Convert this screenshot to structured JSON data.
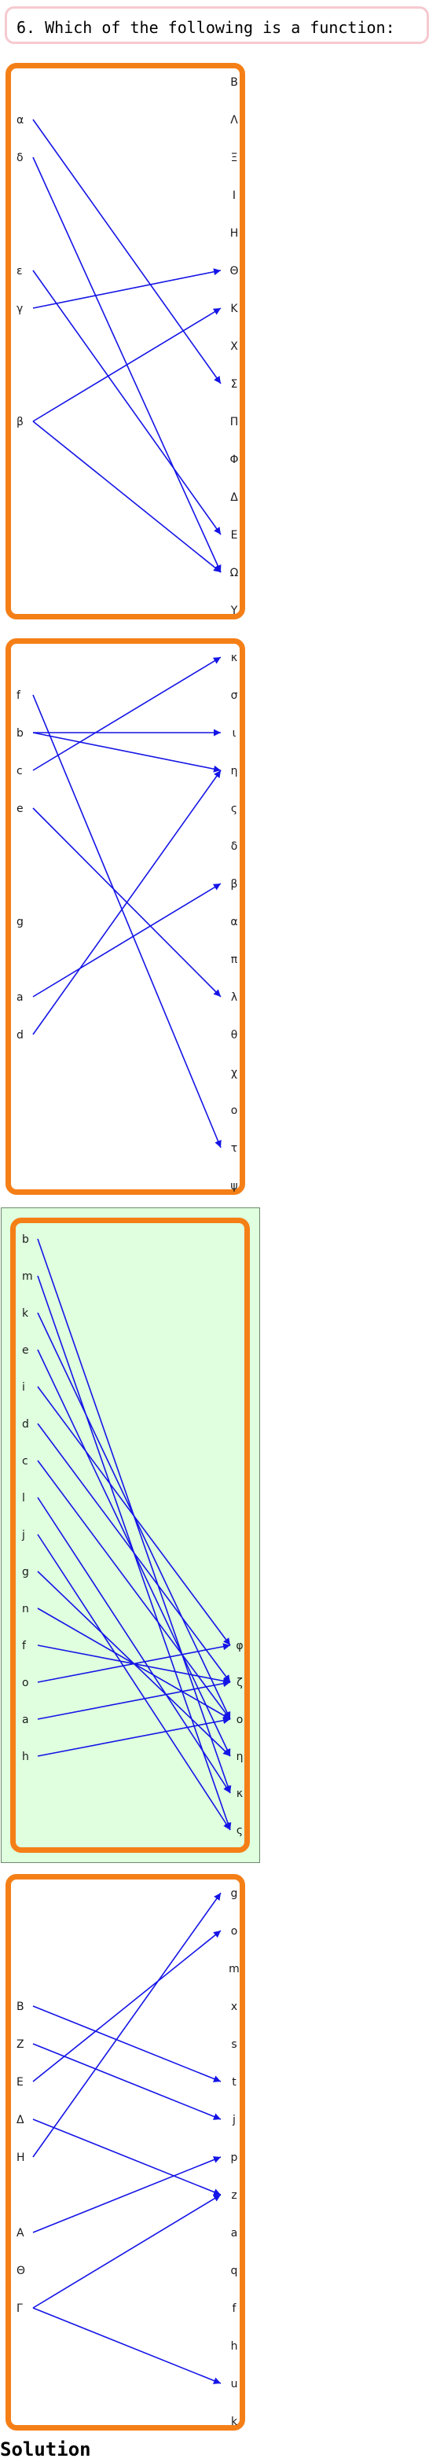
{
  "question": "6. Which of the following is a function:",
  "solution_label": "Solution",
  "colors": {
    "edge": "#1414e6",
    "panel_border": "#f57f17",
    "solution_fill": "#dfffdf"
  },
  "diagrams": [
    {
      "left": [
        "α",
        "δ",
        "ε",
        "γ",
        "β"
      ],
      "left_rows": [
        1,
        2,
        5,
        6,
        9
      ],
      "right": [
        "Β",
        "Λ",
        "Ξ",
        "Ι",
        "Η",
        "Θ",
        "Κ",
        "Χ",
        "Σ",
        "Π",
        "Φ",
        "Δ",
        "Ε",
        "Ω",
        "Υ"
      ],
      "edges": [
        [
          "α",
          "Σ"
        ],
        [
          "δ",
          "Ω"
        ],
        [
          "ε",
          "Ε"
        ],
        [
          "γ",
          "Θ"
        ],
        [
          "β",
          "Κ"
        ],
        [
          "β",
          "Ω"
        ]
      ]
    },
    {
      "left": [
        "f",
        "b",
        "c",
        "e",
        "g",
        "a",
        "d"
      ],
      "left_rows": [
        1,
        2,
        3,
        4,
        7,
        9,
        10
      ],
      "right": [
        "κ",
        "σ",
        "ι",
        "η",
        "ς",
        "δ",
        "β",
        "α",
        "π",
        "λ",
        "θ",
        "χ",
        "ο",
        "τ",
        "ψ"
      ],
      "edges": [
        [
          "f",
          "τ"
        ],
        [
          "b",
          "ι"
        ],
        [
          "b",
          "η"
        ],
        [
          "c",
          "κ"
        ],
        [
          "e",
          "λ"
        ],
        [
          "a",
          "β"
        ],
        [
          "d",
          "η"
        ]
      ]
    },
    {
      "left": [
        "b",
        "m",
        "k",
        "e",
        "i",
        "d",
        "c",
        "l",
        "j",
        "g",
        "n",
        "f",
        "o",
        "a",
        "h"
      ],
      "left_rows": [
        0,
        1,
        2,
        3,
        4,
        5,
        6,
        7,
        8,
        9,
        10,
        11,
        12,
        13,
        14
      ],
      "right": [
        "φ",
        "ζ",
        "o",
        "η",
        "κ",
        "ς"
      ],
      "right_rows": [
        11,
        12,
        13,
        14,
        15,
        16
      ],
      "edges": [
        [
          "b",
          "κ"
        ],
        [
          "m",
          "ς"
        ],
        [
          "k",
          "o"
        ],
        [
          "e",
          "η"
        ],
        [
          "i",
          "φ"
        ],
        [
          "d",
          "ζ"
        ],
        [
          "c",
          "o"
        ],
        [
          "l",
          "κ"
        ],
        [
          "j",
          "ς"
        ],
        [
          "g",
          "η"
        ],
        [
          "n",
          "o"
        ],
        [
          "f",
          "ζ"
        ],
        [
          "o",
          "φ"
        ],
        [
          "a",
          "ζ"
        ],
        [
          "h",
          "o"
        ]
      ]
    },
    {
      "left": [
        "B",
        "Z",
        "E",
        "Δ",
        "H",
        "A",
        "Θ",
        "Γ"
      ],
      "left_rows": [
        3,
        4,
        5,
        6,
        7,
        9,
        10,
        11
      ],
      "right": [
        "g",
        "o",
        "m",
        "x",
        "s",
        "t",
        "j",
        "p",
        "z",
        "a",
        "q",
        "f",
        "h",
        "u",
        "k"
      ],
      "edges": [
        [
          "B",
          "t"
        ],
        [
          "Z",
          "j"
        ],
        [
          "E",
          "o"
        ],
        [
          "Δ",
          "z"
        ],
        [
          "H",
          "g"
        ],
        [
          "A",
          "p"
        ],
        [
          "Γ",
          "z"
        ],
        [
          "Γ",
          "u"
        ]
      ]
    }
  ]
}
